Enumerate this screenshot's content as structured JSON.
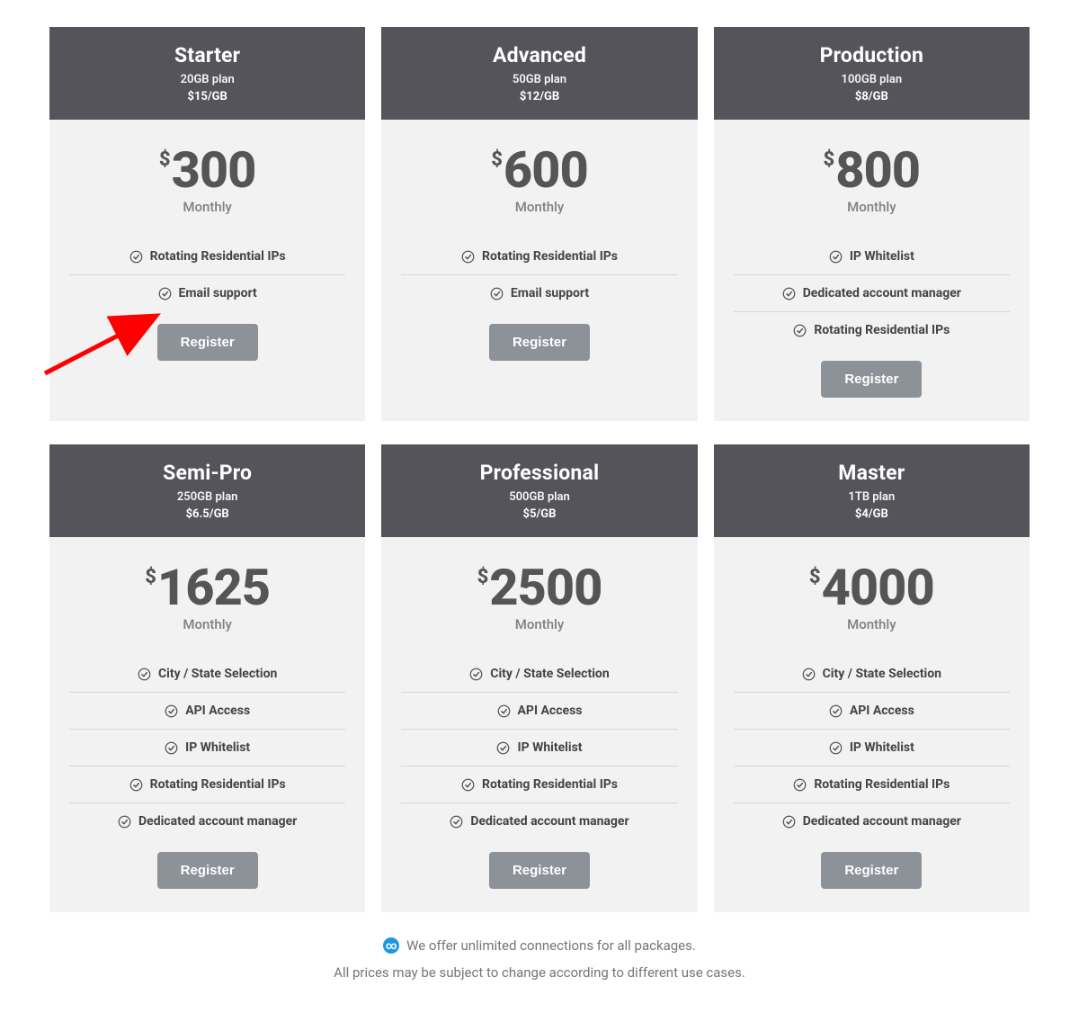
{
  "colors": {
    "header_bg": "#54545a",
    "header_text": "#ffffff",
    "card_bg": "#f2f2f2",
    "price_color": "#555555",
    "period_color": "#808080",
    "feature_text": "#444444",
    "divider": "#d7d7d7",
    "button_bg": "#8d9298",
    "button_text": "#ffffff",
    "footer_text": "#767676",
    "arrow_color": "#ff0000",
    "badge_bg": "#1f97e0"
  },
  "period_label": "Monthly",
  "register_label": "Register",
  "currency": "$",
  "plans": [
    {
      "name": "Starter",
      "sub": "20GB plan",
      "rate": "$15/GB",
      "price": "300",
      "features": [
        "Rotating Residential IPs",
        "Email support"
      ]
    },
    {
      "name": "Advanced",
      "sub": "50GB plan",
      "rate": "$12/GB",
      "price": "600",
      "features": [
        "Rotating Residential IPs",
        "Email support"
      ]
    },
    {
      "name": "Production",
      "sub": "100GB plan",
      "rate": "$8/GB",
      "price": "800",
      "features": [
        "IP Whitelist",
        "Dedicated account manager",
        "Rotating Residential IPs"
      ]
    },
    {
      "name": "Semi-Pro",
      "sub": "250GB plan",
      "rate": "$6.5/GB",
      "price": "1625",
      "features": [
        "City / State Selection",
        "API Access",
        "IP Whitelist",
        "Rotating Residential IPs",
        "Dedicated account manager"
      ]
    },
    {
      "name": "Professional",
      "sub": "500GB plan",
      "rate": "$5/GB",
      "price": "2500",
      "features": [
        "City / State Selection",
        "API Access",
        "IP Whitelist",
        "Rotating Residential IPs",
        "Dedicated account manager"
      ]
    },
    {
      "name": "Master",
      "sub": "1TB plan",
      "rate": "$4/GB",
      "price": "4000",
      "features": [
        "City / State Selection",
        "API Access",
        "IP Whitelist",
        "Rotating Residential IPs",
        "Dedicated account manager"
      ]
    }
  ],
  "footer": {
    "line1": "We offer unlimited connections for all packages.",
    "line2": "All prices may be subject to change according to different use cases."
  },
  "annotation_arrow": {
    "points_to_plan_index": 0,
    "target": "register-button"
  }
}
